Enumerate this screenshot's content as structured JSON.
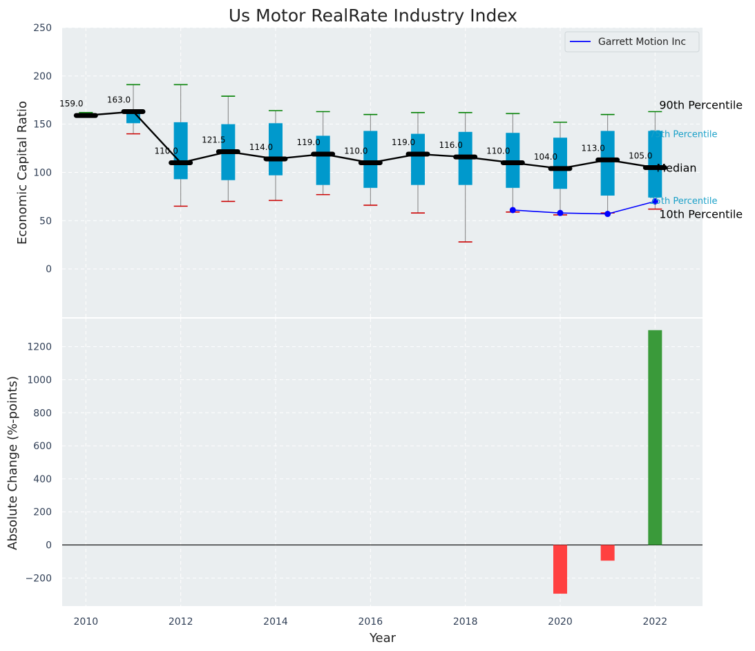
{
  "chart_data": [
    {
      "type": "box",
      "title": "Us Motor RealRate Industry Index",
      "ylabel": "Economic Capital Ratio",
      "ylim": [
        -50,
        250
      ],
      "yticks": [
        0,
        50,
        100,
        150,
        200,
        250
      ],
      "grid": true,
      "years": [
        2010,
        2011,
        2012,
        2013,
        2014,
        2015,
        2016,
        2017,
        2018,
        2019,
        2020,
        2021,
        2022
      ],
      "median": [
        159.0,
        163.0,
        110.0,
        121.5,
        114.0,
        119.0,
        110.0,
        119.0,
        116.0,
        110.0,
        104.0,
        113.0,
        105.0
      ],
      "median_labels": [
        "159.0",
        "163.0",
        "110.0",
        "121.5",
        "114.0",
        "119.0",
        "110.0",
        "119.0",
        "116.0",
        "110.0",
        "104.0",
        "113.0",
        "105.0"
      ],
      "q1": [
        159,
        151,
        93,
        92,
        97,
        87,
        84,
        87,
        87,
        84,
        83,
        76,
        74
      ],
      "q3": [
        160,
        165,
        152,
        150,
        151,
        138,
        143,
        140,
        142,
        141,
        136,
        143,
        143
      ],
      "p10": [
        160,
        140,
        65,
        70,
        71,
        77,
        66,
        58,
        28,
        59,
        56,
        58,
        62
      ],
      "p90": [
        162,
        191,
        191,
        179,
        164,
        163,
        160,
        162,
        162,
        161,
        152,
        160,
        163
      ],
      "series": [
        {
          "name": "Garrett Motion Inc",
          "color": "#0000ff",
          "x": [
            2019,
            2020,
            2021,
            2022
          ],
          "values": [
            61,
            58,
            57,
            70
          ]
        }
      ],
      "legend": {
        "placement": "top-right",
        "entries": [
          "Garrett Motion Inc"
        ]
      },
      "right_labels": {
        "p90": "90th Percentile",
        "q3": "75th Percentile",
        "median": "Median",
        "q1": "25th Percentile",
        "p10": "10th Percentile"
      },
      "colors": {
        "box": "#0099cc",
        "median": "#000000",
        "p90_cap": "#008000",
        "p10_cap": "#cc0000",
        "whisker": "#808080",
        "background": "#eaeef0"
      }
    },
    {
      "type": "bar",
      "ylabel": "Absolute Change (%-points)",
      "xlabel": "Year",
      "ylim": [
        -370,
        1370
      ],
      "yticks": [
        -200,
        0,
        200,
        400,
        600,
        800,
        1000,
        1200
      ],
      "ytick_labels": [
        "−200",
        "0",
        "200",
        "400",
        "600",
        "800",
        "1000",
        "1200"
      ],
      "xticks": [
        2010,
        2012,
        2014,
        2016,
        2018,
        2020,
        2022
      ],
      "x": [
        2020,
        2021,
        2022
      ],
      "values": [
        -295,
        -95,
        1300
      ],
      "grid": true,
      "colors": {
        "positive": "#3a9a3a",
        "negative": "#ff4040"
      }
    }
  ]
}
